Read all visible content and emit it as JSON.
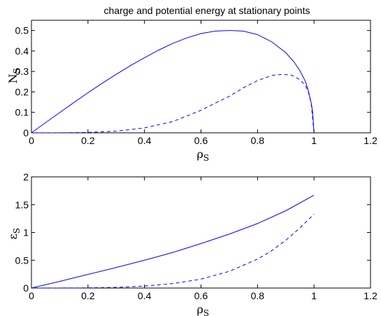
{
  "figure": {
    "title": "charge and potential energy at stationary points"
  },
  "chart_data": [
    {
      "type": "line",
      "title": "charge and potential energy at stationary points",
      "xlabel": "ρ",
      "xlabel_sub": "S",
      "ylabel": "N",
      "ylabel_sub": "S",
      "xlim": [
        0,
        1.2
      ],
      "ylim": [
        0,
        0.55
      ],
      "xticks": [
        "0",
        "0.2",
        "0.4",
        "0.6",
        "0.8",
        "1",
        "1.2"
      ],
      "yticks": [
        "0",
        "0.1",
        "0.2",
        "0.3",
        "0.4",
        "0.5"
      ],
      "grid": false,
      "series": [
        {
          "style": "solid",
          "color": "#0000ff",
          "x": [
            0,
            0.05,
            0.1,
            0.15,
            0.2,
            0.25,
            0.3,
            0.35,
            0.4,
            0.45,
            0.5,
            0.55,
            0.6,
            0.65,
            0.7,
            0.707,
            0.75,
            0.8,
            0.85,
            0.9,
            0.93,
            0.95,
            0.97,
            0.98,
            0.99,
            0.995,
            1.0
          ],
          "values": [
            0,
            0.05,
            0.099,
            0.148,
            0.196,
            0.242,
            0.286,
            0.328,
            0.367,
            0.404,
            0.437,
            0.464,
            0.485,
            0.497,
            0.5,
            0.5,
            0.497,
            0.48,
            0.445,
            0.392,
            0.345,
            0.304,
            0.25,
            0.206,
            0.147,
            0.105,
            0
          ]
        },
        {
          "style": "dashed",
          "color": "#0000ff",
          "x": [
            0,
            0.1,
            0.2,
            0.3,
            0.4,
            0.5,
            0.6,
            0.65,
            0.7,
            0.75,
            0.8,
            0.85,
            0.88,
            0.9,
            0.92,
            0.95,
            0.97,
            0.98,
            0.99,
            1.0
          ],
          "values": [
            0,
            0.0002,
            0.002,
            0.008,
            0.024,
            0.055,
            0.11,
            0.145,
            0.178,
            0.22,
            0.255,
            0.28,
            0.285,
            0.285,
            0.282,
            0.26,
            0.23,
            0.2,
            0.143,
            0
          ]
        }
      ]
    },
    {
      "type": "line",
      "xlabel": "ρ",
      "xlabel_sub": "S",
      "ylabel": "ε",
      "ylabel_sub": "S",
      "xlim": [
        0,
        1.2
      ],
      "ylim": [
        0,
        2
      ],
      "xticks": [
        "0",
        "0.2",
        "0.4",
        "0.6",
        "0.8",
        "1",
        "1.2"
      ],
      "yticks": [
        "0",
        "0.5",
        "1",
        "1.5",
        "2"
      ],
      "grid": false,
      "series": [
        {
          "style": "solid",
          "color": "#0000ff",
          "x": [
            0,
            0.1,
            0.2,
            0.3,
            0.4,
            0.5,
            0.6,
            0.7,
            0.8,
            0.9,
            1.0
          ],
          "values": [
            0,
            0.12,
            0.245,
            0.37,
            0.5,
            0.64,
            0.8,
            0.97,
            1.16,
            1.39,
            1.67
          ]
        },
        {
          "style": "dashed",
          "color": "#0000ff",
          "x": [
            0,
            0.1,
            0.2,
            0.3,
            0.4,
            0.5,
            0.6,
            0.7,
            0.8,
            0.85,
            0.9,
            0.95,
            1.0
          ],
          "values": [
            0,
            0.0005,
            0.003,
            0.012,
            0.035,
            0.08,
            0.16,
            0.3,
            0.52,
            0.67,
            0.86,
            1.08,
            1.33
          ]
        }
      ]
    }
  ]
}
